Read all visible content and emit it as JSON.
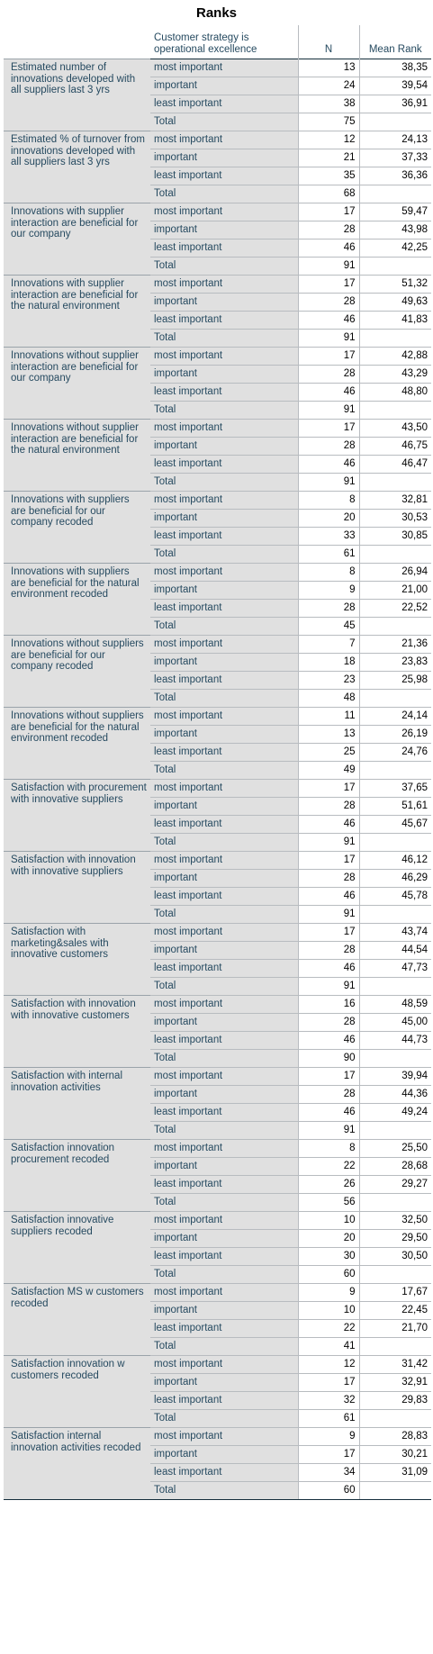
{
  "title": "Ranks",
  "header": {
    "group_col": "Customer strategy is operational excellence",
    "n_col": "N",
    "mean_rank_col": "Mean Rank"
  },
  "rows": [
    {
      "variable": "Estimated number of innovations developed with all suppliers last 3 yrs",
      "groups": [
        {
          "label": "most important",
          "n": "13",
          "mean_rank": "38,35"
        },
        {
          "label": "important",
          "n": "24",
          "mean_rank": "39,54"
        },
        {
          "label": "least important",
          "n": "38",
          "mean_rank": "36,91"
        },
        {
          "label": "Total",
          "n": "75",
          "mean_rank": ""
        }
      ]
    },
    {
      "variable": "Estimated % of turnover from innovations developed with all suppliers last 3 yrs",
      "groups": [
        {
          "label": "most important",
          "n": "12",
          "mean_rank": "24,13"
        },
        {
          "label": "important",
          "n": "21",
          "mean_rank": "37,33"
        },
        {
          "label": "least important",
          "n": "35",
          "mean_rank": "36,36"
        },
        {
          "label": "Total",
          "n": "68",
          "mean_rank": ""
        }
      ]
    },
    {
      "variable": "Innovations with supplier interaction are beneficial for our company",
      "groups": [
        {
          "label": "most important",
          "n": "17",
          "mean_rank": "59,47"
        },
        {
          "label": "important",
          "n": "28",
          "mean_rank": "43,98"
        },
        {
          "label": "least important",
          "n": "46",
          "mean_rank": "42,25"
        },
        {
          "label": "Total",
          "n": "91",
          "mean_rank": ""
        }
      ]
    },
    {
      "variable": "Innovations with supplier interaction are beneficial for the natural environment",
      "groups": [
        {
          "label": "most important",
          "n": "17",
          "mean_rank": "51,32"
        },
        {
          "label": "important",
          "n": "28",
          "mean_rank": "49,63"
        },
        {
          "label": "least important",
          "n": "46",
          "mean_rank": "41,83"
        },
        {
          "label": "Total",
          "n": "91",
          "mean_rank": ""
        }
      ]
    },
    {
      "variable": "Innovations without supplier interaction are beneficial for our company",
      "groups": [
        {
          "label": "most important",
          "n": "17",
          "mean_rank": "42,88"
        },
        {
          "label": "important",
          "n": "28",
          "mean_rank": "43,29"
        },
        {
          "label": "least important",
          "n": "46",
          "mean_rank": "48,80"
        },
        {
          "label": "Total",
          "n": "91",
          "mean_rank": ""
        }
      ]
    },
    {
      "variable": "Innovations without supplier interaction are beneficial for the natural environment",
      "groups": [
        {
          "label": "most important",
          "n": "17",
          "mean_rank": "43,50"
        },
        {
          "label": "important",
          "n": "28",
          "mean_rank": "46,75"
        },
        {
          "label": "least important",
          "n": "46",
          "mean_rank": "46,47"
        },
        {
          "label": "Total",
          "n": "91",
          "mean_rank": ""
        }
      ]
    },
    {
      "variable": "Innovations with suppliers are beneficial for our company recoded",
      "groups": [
        {
          "label": "most important",
          "n": "8",
          "mean_rank": "32,81"
        },
        {
          "label": "important",
          "n": "20",
          "mean_rank": "30,53"
        },
        {
          "label": "least important",
          "n": "33",
          "mean_rank": "30,85"
        },
        {
          "label": "Total",
          "n": "61",
          "mean_rank": ""
        }
      ]
    },
    {
      "variable": "Innovations with suppliers are beneficial for the natural environment recoded",
      "groups": [
        {
          "label": "most important",
          "n": "8",
          "mean_rank": "26,94"
        },
        {
          "label": "important",
          "n": "9",
          "mean_rank": "21,00"
        },
        {
          "label": "least important",
          "n": "28",
          "mean_rank": "22,52"
        },
        {
          "label": "Total",
          "n": "45",
          "mean_rank": ""
        }
      ]
    },
    {
      "variable": "Innovations without suppliers are beneficial for our company recoded",
      "groups": [
        {
          "label": "most important",
          "n": "7",
          "mean_rank": "21,36"
        },
        {
          "label": "important",
          "n": "18",
          "mean_rank": "23,83"
        },
        {
          "label": "least important",
          "n": "23",
          "mean_rank": "25,98"
        },
        {
          "label": "Total",
          "n": "48",
          "mean_rank": ""
        }
      ]
    },
    {
      "variable": "Innovations without suppliers are beneficial for the natural environment recoded",
      "groups": [
        {
          "label": "most important",
          "n": "11",
          "mean_rank": "24,14"
        },
        {
          "label": "important",
          "n": "13",
          "mean_rank": "26,19"
        },
        {
          "label": "least important",
          "n": "25",
          "mean_rank": "24,76"
        },
        {
          "label": "Total",
          "n": "49",
          "mean_rank": ""
        }
      ]
    },
    {
      "variable": "Satisfaction with procurement with innovative suppliers",
      "groups": [
        {
          "label": "most important",
          "n": "17",
          "mean_rank": "37,65"
        },
        {
          "label": "important",
          "n": "28",
          "mean_rank": "51,61"
        },
        {
          "label": "least important",
          "n": "46",
          "mean_rank": "45,67"
        },
        {
          "label": "Total",
          "n": "91",
          "mean_rank": ""
        }
      ]
    },
    {
      "variable": "Satisfaction with innovation with innovative suppliers",
      "groups": [
        {
          "label": "most important",
          "n": "17",
          "mean_rank": "46,12"
        },
        {
          "label": "important",
          "n": "28",
          "mean_rank": "46,29"
        },
        {
          "label": "least important",
          "n": "46",
          "mean_rank": "45,78"
        },
        {
          "label": "Total",
          "n": "91",
          "mean_rank": ""
        }
      ]
    },
    {
      "variable": "Satisfaction with marketing&sales with innovative customers",
      "groups": [
        {
          "label": "most important",
          "n": "17",
          "mean_rank": "43,74"
        },
        {
          "label": "important",
          "n": "28",
          "mean_rank": "44,54"
        },
        {
          "label": "least important",
          "n": "46",
          "mean_rank": "47,73"
        },
        {
          "label": "Total",
          "n": "91",
          "mean_rank": ""
        }
      ]
    },
    {
      "variable": "Satisfaction with innovation with innovative customers",
      "groups": [
        {
          "label": "most important",
          "n": "16",
          "mean_rank": "48,59"
        },
        {
          "label": "important",
          "n": "28",
          "mean_rank": "45,00"
        },
        {
          "label": "least important",
          "n": "46",
          "mean_rank": "44,73"
        },
        {
          "label": "Total",
          "n": "90",
          "mean_rank": ""
        }
      ]
    },
    {
      "variable": "Satisfaction with internal innovation activities",
      "groups": [
        {
          "label": "most important",
          "n": "17",
          "mean_rank": "39,94"
        },
        {
          "label": "important",
          "n": "28",
          "mean_rank": "44,36"
        },
        {
          "label": "least important",
          "n": "46",
          "mean_rank": "49,24"
        },
        {
          "label": "Total",
          "n": "91",
          "mean_rank": ""
        }
      ]
    },
    {
      "variable": "Satisfaction innovation procurement recoded",
      "groups": [
        {
          "label": "most important",
          "n": "8",
          "mean_rank": "25,50"
        },
        {
          "label": "important",
          "n": "22",
          "mean_rank": "28,68"
        },
        {
          "label": "least important",
          "n": "26",
          "mean_rank": "29,27"
        },
        {
          "label": "Total",
          "n": "56",
          "mean_rank": ""
        }
      ]
    },
    {
      "variable": "Satisfaction innovative suppliers recoded",
      "groups": [
        {
          "label": "most important",
          "n": "10",
          "mean_rank": "32,50"
        },
        {
          "label": "important",
          "n": "20",
          "mean_rank": "29,50"
        },
        {
          "label": "least important",
          "n": "30",
          "mean_rank": "30,50"
        },
        {
          "label": "Total",
          "n": "60",
          "mean_rank": ""
        }
      ]
    },
    {
      "variable": "Satisfaction MS w customers recoded",
      "groups": [
        {
          "label": "most important",
          "n": "9",
          "mean_rank": "17,67"
        },
        {
          "label": "important",
          "n": "10",
          "mean_rank": "22,45"
        },
        {
          "label": "least important",
          "n": "22",
          "mean_rank": "21,70"
        },
        {
          "label": "Total",
          "n": "41",
          "mean_rank": ""
        }
      ]
    },
    {
      "variable": "Satisfaction innovation w customers recoded",
      "groups": [
        {
          "label": "most important",
          "n": "12",
          "mean_rank": "31,42"
        },
        {
          "label": "important",
          "n": "17",
          "mean_rank": "32,91"
        },
        {
          "label": "least important",
          "n": "32",
          "mean_rank": "29,83"
        },
        {
          "label": "Total",
          "n": "61",
          "mean_rank": ""
        }
      ]
    },
    {
      "variable": "Satisfaction internal innovation activities recoded",
      "groups": [
        {
          "label": "most important",
          "n": "9",
          "mean_rank": "28,83"
        },
        {
          "label": "important",
          "n": "17",
          "mean_rank": "30,21"
        },
        {
          "label": "least important",
          "n": "34",
          "mean_rank": "31,09"
        },
        {
          "label": "Total",
          "n": "60",
          "mean_rank": ""
        }
      ]
    }
  ]
}
